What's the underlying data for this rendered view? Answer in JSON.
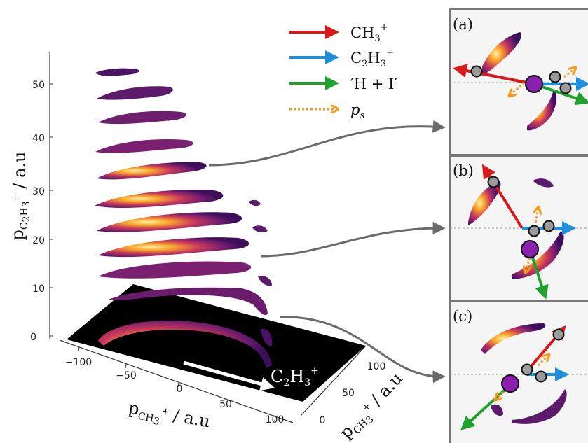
{
  "chart_data": {
    "type": "heatmap",
    "axes": {
      "x": {
        "label_main": "p",
        "label_sub": "CH",
        "label_sub_sub": "3",
        "label_sup": "+",
        "label_unit": "/ a.u",
        "ticks": [
          "−100",
          "−50",
          "0",
          "50",
          "100"
        ]
      },
      "y": {
        "label_main": "p",
        "label_sub": "CH",
        "label_sub_sub": "3",
        "label_sup": "+",
        "label_unit": "/ a.u",
        "ticks": [
          "0",
          "50",
          "100"
        ]
      },
      "z": {
        "label_main": "p",
        "label_sub": "C",
        "label_sub_sub": "2",
        "label_sub2": "H",
        "label_sub_sub2": "3",
        "label_sup": "+",
        "label_unit": "/ a.u",
        "ticks": [
          "0",
          "10",
          "20",
          "30",
          "40",
          "50"
        ]
      },
      "zlim": [
        0,
        55
      ]
    },
    "floor_arrow": {
      "main": "C",
      "sub": "2",
      "mid": "H",
      "sub2": "3",
      "sup": "+"
    },
    "slices_z": [
      0,
      5,
      10,
      15,
      20,
      25,
      30,
      35,
      40,
      45,
      50,
      55
    ],
    "colormap": "inferno",
    "legend": [
      {
        "main": "CH",
        "sub": "3",
        "sup": "+",
        "color": "#d7191c",
        "style": "solid"
      },
      {
        "main": "C",
        "sub": "2",
        "mid": "H",
        "sub2": "3",
        "sup": "+",
        "color": "#1f8fdc",
        "style": "solid"
      },
      {
        "main": "′H + I′",
        "color": "#1fa12d",
        "style": "solid"
      },
      {
        "main": "p",
        "sub": "s",
        "color": "#f59a1d",
        "style": "dotted"
      }
    ],
    "panels": [
      {
        "label": "(a)"
      },
      {
        "label": "(b)"
      },
      {
        "label": "(c)"
      }
    ]
  }
}
